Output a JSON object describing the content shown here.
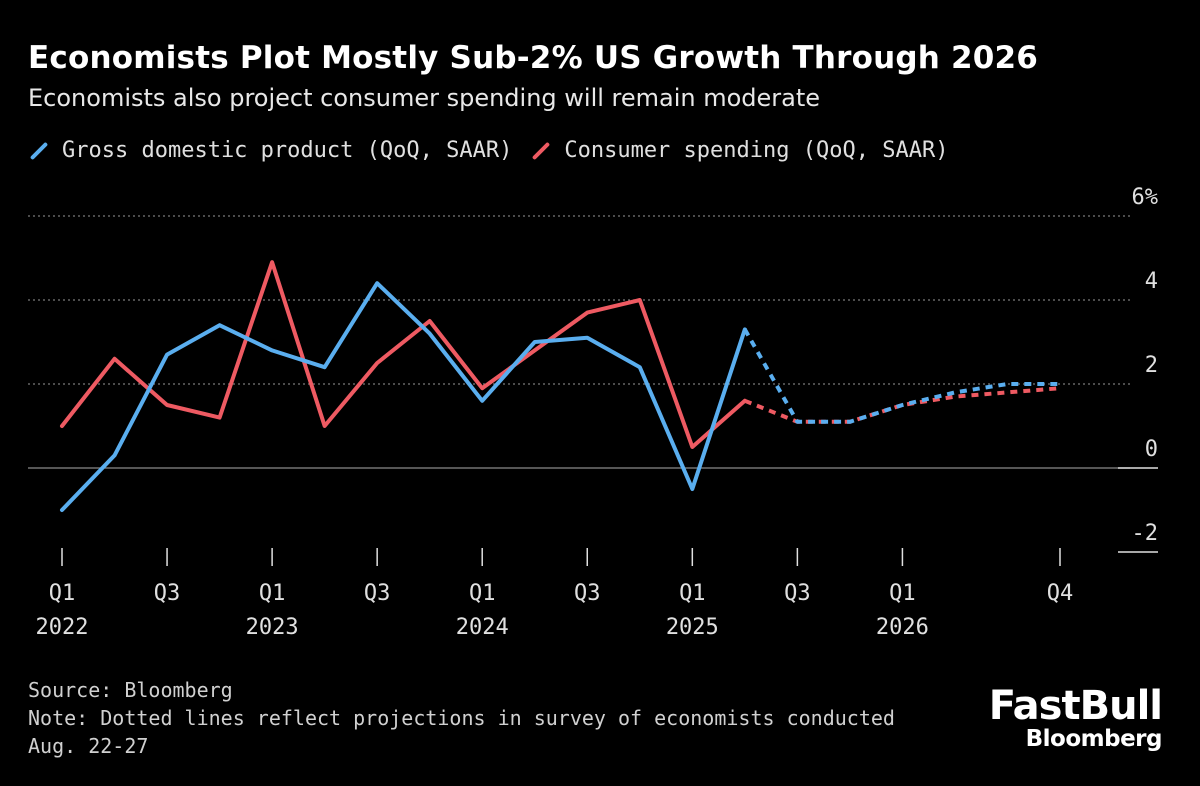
{
  "chart_data": {
    "type": "line",
    "title": "Economists Plot Mostly Sub-2% US Growth Through 2026",
    "subtitle": "Economists also project consumer spending will remain moderate",
    "x": [
      "2022 Q1",
      "2022 Q2",
      "2022 Q3",
      "2022 Q4",
      "2023 Q1",
      "2023 Q2",
      "2023 Q3",
      "2023 Q4",
      "2024 Q1",
      "2024 Q2",
      "2024 Q3",
      "2024 Q4",
      "2025 Q1",
      "2025 Q2",
      "2025 Q3",
      "2025 Q4",
      "2026 Q1",
      "2026 Q2",
      "2026 Q3",
      "2026 Q4"
    ],
    "x_tick_labels": [
      {
        "q": "Q1",
        "year": "2022",
        "index": 0
      },
      {
        "q": "",
        "year": "",
        "index": 1
      },
      {
        "q": "Q3",
        "year": "",
        "index": 2
      },
      {
        "q": "",
        "year": "",
        "index": 3
      },
      {
        "q": "Q1",
        "year": "2023",
        "index": 4
      },
      {
        "q": "",
        "year": "",
        "index": 5
      },
      {
        "q": "Q3",
        "year": "",
        "index": 6
      },
      {
        "q": "",
        "year": "",
        "index": 7
      },
      {
        "q": "Q1",
        "year": "2024",
        "index": 8
      },
      {
        "q": "",
        "year": "",
        "index": 9
      },
      {
        "q": "Q3",
        "year": "",
        "index": 10
      },
      {
        "q": "",
        "year": "",
        "index": 11
      },
      {
        "q": "Q1",
        "year": "2025",
        "index": 12
      },
      {
        "q": "",
        "year": "",
        "index": 13
      },
      {
        "q": "Q3",
        "year": "",
        "index": 14
      },
      {
        "q": "",
        "year": "",
        "index": 15
      },
      {
        "q": "Q1",
        "year": "2026",
        "index": 16
      },
      {
        "q": "Q4",
        "year": "",
        "index": 19
      }
    ],
    "y_ticks": [
      {
        "value": 6,
        "label": "6%"
      },
      {
        "value": 4,
        "label": "4"
      },
      {
        "value": 2,
        "label": "2"
      },
      {
        "value": 0,
        "label": "0"
      },
      {
        "value": -2,
        "label": "-2"
      }
    ],
    "ylim": [
      -2,
      6
    ],
    "series": [
      {
        "name": "Gross domestic product (QoQ, SAAR)",
        "color": "#5aaeef",
        "values": [
          -1.0,
          0.3,
          2.7,
          3.4,
          2.8,
          2.4,
          4.4,
          3.2,
          1.6,
          3.0,
          3.1,
          2.4,
          -0.5,
          3.3,
          1.1,
          1.1,
          1.5,
          1.8,
          2.0,
          2.0
        ],
        "projected_from_index": 13
      },
      {
        "name": "Consumer spending (QoQ, SAAR)",
        "color": "#ee5a62",
        "values": [
          1.0,
          2.6,
          1.5,
          1.2,
          4.9,
          1.0,
          2.5,
          3.5,
          1.9,
          2.8,
          3.7,
          4.0,
          0.5,
          1.6,
          1.1,
          1.1,
          1.5,
          1.7,
          1.8,
          1.9
        ],
        "projected_from_index": 13
      }
    ],
    "grid": true,
    "legend_position": "top-left"
  },
  "footer": {
    "source": "Source: Bloomberg",
    "note_line1": "Note: Dotted lines reflect projections in survey of economists conducted",
    "note_line2": "Aug. 22-27"
  },
  "brand": {
    "main": "FastBull",
    "sub": "Bloomberg"
  }
}
